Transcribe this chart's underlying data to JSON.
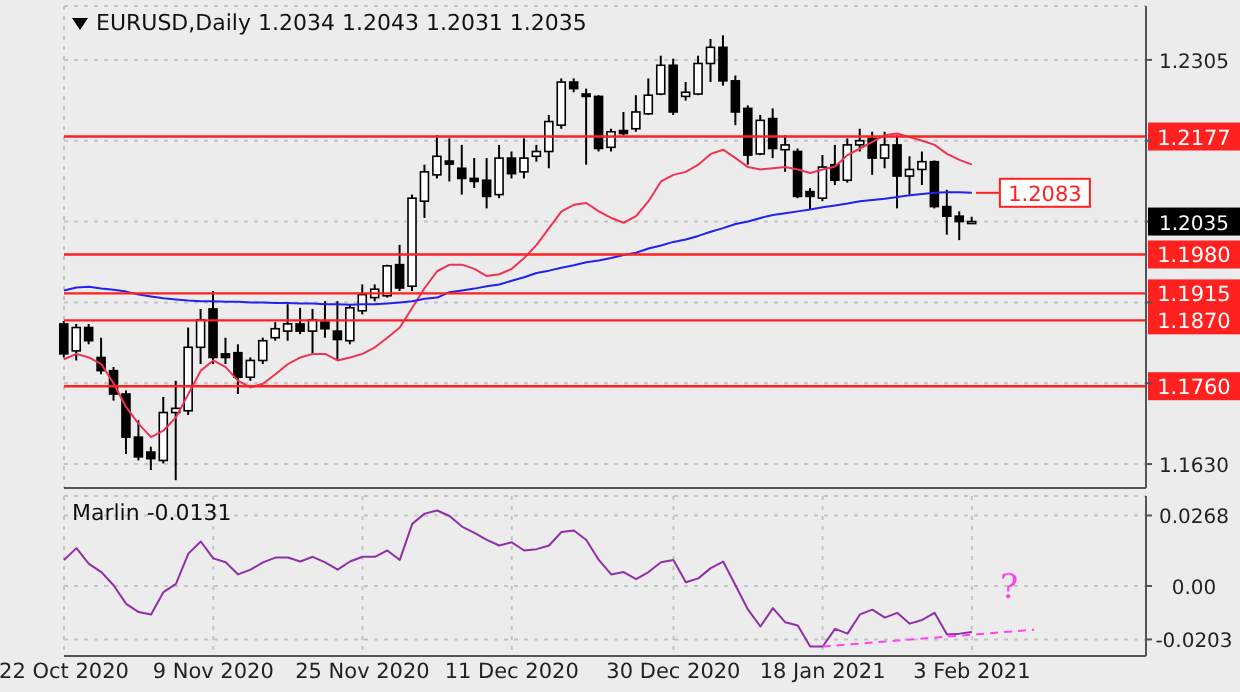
{
  "chart_data": [
    {
      "type": "candlestick",
      "title": "EURUSD,Daily 1.2034 1.2043 1.2031 1.2035",
      "categories": [
        "22 Oct 2020",
        null,
        null,
        null,
        null,
        null,
        null,
        null,
        null,
        null,
        null,
        null,
        "9 Nov 2020",
        null,
        null,
        null,
        null,
        null,
        null,
        null,
        null,
        null,
        null,
        null,
        "25 Nov 2020",
        null,
        null,
        null,
        null,
        null,
        null,
        null,
        null,
        null,
        null,
        null,
        "11 Dec 2020",
        null,
        null,
        null,
        null,
        null,
        null,
        null,
        null,
        null,
        null,
        null,
        null,
        "30 Dec 2020",
        null,
        null,
        null,
        null,
        null,
        null,
        null,
        null,
        null,
        null,
        null,
        "18 Jan 2021",
        null,
        null,
        null,
        null,
        null,
        null,
        null,
        null,
        null,
        null,
        null,
        "3 Feb 2021",
        null,
        null,
        null,
        null,
        null,
        null,
        null,
        null,
        null,
        null,
        null,
        null,
        null,
        null
      ],
      "ohlc": [
        [
          1.1864,
          1.1869,
          1.1808,
          1.1814
        ],
        [
          1.1819,
          1.1864,
          1.1803,
          1.1858
        ],
        [
          1.1858,
          1.1864,
          1.183,
          1.1836
        ],
        [
          1.1808,
          1.1841,
          1.178,
          1.1786
        ],
        [
          1.1786,
          1.1792,
          1.1736,
          1.1747
        ],
        [
          1.1747,
          1.1753,
          1.1647,
          1.1675
        ],
        [
          1.1675,
          1.1703,
          1.1636,
          1.1642
        ],
        [
          1.165,
          1.1659,
          1.162,
          1.1639
        ],
        [
          1.1636,
          1.1742,
          1.1631,
          1.1716
        ],
        [
          1.1716,
          1.1769,
          1.1603,
          1.1723
        ],
        [
          1.1719,
          1.1858,
          1.1712,
          1.1825
        ],
        [
          1.1825,
          1.1889,
          1.1797,
          1.1871
        ],
        [
          1.1889,
          1.1919,
          1.1797,
          1.1808
        ],
        [
          1.1814,
          1.1841,
          1.1797,
          1.1808
        ],
        [
          1.1816,
          1.183,
          1.1747,
          1.1775
        ],
        [
          1.1775,
          1.1808,
          1.1769,
          1.1803
        ],
        [
          1.1803,
          1.1841,
          1.1797,
          1.1836
        ],
        [
          1.1841,
          1.1867,
          1.1836,
          1.1856
        ],
        [
          1.1852,
          1.1897,
          1.1836,
          1.1864
        ],
        [
          1.1864,
          1.1891,
          1.1847,
          1.1852
        ],
        [
          1.1852,
          1.1889,
          1.1814,
          1.1871
        ],
        [
          1.1867,
          1.1902,
          1.1841,
          1.1856
        ],
        [
          1.1852,
          1.1902,
          1.1803,
          1.1838
        ],
        [
          1.1836,
          1.1897,
          1.183,
          1.1891
        ],
        [
          1.1886,
          1.193,
          1.188,
          1.1913
        ],
        [
          1.1908,
          1.193,
          1.1902,
          1.1922
        ],
        [
          1.1911,
          1.1963,
          1.1908,
          1.1961
        ],
        [
          1.1963,
          1.1996,
          1.1919,
          1.1924
        ],
        [
          1.1927,
          1.208,
          1.1919,
          1.2074
        ],
        [
          1.2069,
          1.213,
          1.2041,
          1.2118
        ],
        [
          1.2113,
          1.2179,
          1.2107,
          1.2144
        ],
        [
          1.2136,
          1.2174,
          1.2102,
          1.2131
        ],
        [
          1.2124,
          1.2163,
          1.208,
          1.2107
        ],
        [
          1.2107,
          1.2141,
          1.2091,
          1.2102
        ],
        [
          1.2104,
          1.2141,
          1.2057,
          1.2077
        ],
        [
          1.208,
          1.2163,
          1.2074,
          1.2141
        ],
        [
          1.2141,
          1.2152,
          1.2107,
          1.2115
        ],
        [
          1.2118,
          1.2174,
          1.2107,
          1.2141
        ],
        [
          1.2144,
          1.2163,
          1.2135,
          1.2152
        ],
        [
          1.2152,
          1.2213,
          1.2124,
          1.2202
        ],
        [
          1.2196,
          1.2274,
          1.219,
          1.2268
        ],
        [
          1.2268,
          1.2274,
          1.2251,
          1.2257
        ],
        [
          1.2248,
          1.2257,
          1.213,
          1.2244
        ],
        [
          1.2244,
          1.2246,
          1.2152,
          1.2157
        ],
        [
          1.2159,
          1.219,
          1.2152,
          1.2185
        ],
        [
          1.2187,
          1.2218,
          1.2179,
          1.2182
        ],
        [
          1.219,
          1.2246,
          1.2185,
          1.2218
        ],
        [
          1.2215,
          1.2274,
          1.2213,
          1.2246
        ],
        [
          1.2248,
          1.2312,
          1.2246,
          1.2296
        ],
        [
          1.2296,
          1.2307,
          1.2213,
          1.2218
        ],
        [
          1.2244,
          1.2268,
          1.2237,
          1.2251
        ],
        [
          1.2248,
          1.2312,
          1.2246,
          1.2299
        ],
        [
          1.2299,
          1.234,
          1.2268,
          1.2326
        ],
        [
          1.2326,
          1.2346,
          1.2262,
          1.227
        ],
        [
          1.227,
          1.2279,
          1.2196,
          1.2218
        ],
        [
          1.2224,
          1.2229,
          1.213,
          1.2146
        ],
        [
          1.2148,
          1.2213,
          1.2146,
          1.2204
        ],
        [
          1.2207,
          1.2224,
          1.2141,
          1.2157
        ],
        [
          1.2155,
          1.2179,
          1.2118,
          1.2163
        ],
        [
          1.2152,
          1.2157,
          1.2074,
          1.2077
        ],
        [
          1.2085,
          1.2091,
          1.2055,
          1.2077
        ],
        [
          1.2074,
          1.2146,
          1.2069,
          1.2126
        ],
        [
          1.213,
          1.2163,
          1.2096,
          1.2104
        ],
        [
          1.2104,
          1.2174,
          1.21,
          1.2163
        ],
        [
          1.2163,
          1.219,
          1.2152,
          1.217
        ],
        [
          1.2174,
          1.2185,
          1.2113,
          1.2141
        ],
        [
          1.2141,
          1.2185,
          1.2124,
          1.2163
        ],
        [
          1.2163,
          1.2179,
          1.2057,
          1.2111
        ],
        [
          1.2111,
          1.2144,
          1.208,
          1.2122
        ],
        [
          1.2122,
          1.2152,
          1.2096,
          1.2135
        ],
        [
          1.2135,
          1.2137,
          1.2057,
          1.206
        ],
        [
          1.206,
          1.2088,
          1.2013,
          1.2044
        ],
        [
          1.2044,
          1.2052,
          1.2004,
          1.2035
        ],
        [
          1.2034,
          1.2043,
          1.2031,
          1.2035
        ],
        null,
        null,
        null,
        null,
        null,
        null,
        null,
        null,
        null,
        null,
        null,
        null,
        null,
        null
      ],
      "series": [
        {
          "type": "line",
          "color": "#ee3355",
          "values": [
            1.1805,
            1.1814,
            1.1808,
            1.1797,
            1.1764,
            1.1725,
            1.1697,
            1.1675,
            1.1686,
            1.1708,
            1.1747,
            1.1786,
            1.1803,
            1.1792,
            1.1769,
            1.1758,
            1.1764,
            1.178,
            1.1797,
            1.1808,
            1.1814,
            1.1814,
            1.1803,
            1.1808,
            1.1814,
            1.1825,
            1.1841,
            1.1858,
            1.1891,
            1.1924,
            1.1952,
            1.1963,
            1.1963,
            1.1956,
            1.1944,
            1.1947,
            1.1956,
            1.1974,
            1.1996,
            1.2024,
            1.2052,
            1.2063,
            1.2066,
            1.2052,
            1.2041,
            1.2033,
            1.2044,
            1.2069,
            1.2102,
            1.2113,
            1.2118,
            1.213,
            1.2148,
            1.2155,
            1.2141,
            1.2126,
            1.2122,
            1.2124,
            1.2126,
            1.2122,
            1.2116,
            1.2122,
            1.2127,
            1.2146,
            1.2157,
            1.2168,
            1.2179,
            1.2182,
            1.2176,
            1.217,
            1.2163,
            1.2148,
            1.2138,
            1.213,
            null,
            null,
            null,
            null,
            null,
            null,
            null,
            null,
            null,
            null,
            null,
            null,
            null,
            null
          ]
        },
        {
          "type": "line",
          "color": "#2222ee",
          "values": [
            1.192,
            1.1925,
            1.1926,
            1.1923,
            1.1921,
            1.1918,
            1.1913,
            1.191,
            1.1907,
            1.1905,
            1.1903,
            1.1902,
            1.1902,
            1.1901,
            1.1901,
            1.19,
            1.19,
            1.1899,
            1.1899,
            1.1898,
            1.1898,
            1.1897,
            1.1897,
            1.1896,
            1.1897,
            1.1897,
            1.1898,
            1.19,
            1.1902,
            1.1906,
            1.1908,
            1.1917,
            1.192,
            1.1923,
            1.1927,
            1.193,
            1.1936,
            1.1942,
            1.1949,
            1.1953,
            1.1958,
            1.1962,
            1.1967,
            1.197,
            1.1974,
            1.1979,
            1.1983,
            1.199,
            1.1995,
            1.2001,
            1.2005,
            1.2011,
            1.2018,
            1.2024,
            1.2031,
            1.2035,
            1.2041,
            1.2046,
            1.2049,
            1.2052,
            1.2055,
            1.2059,
            1.2062,
            1.2065,
            1.2069,
            1.2071,
            1.2073,
            1.2076,
            1.2079,
            1.2081,
            1.2083,
            1.2084,
            1.2084,
            1.2083,
            null,
            null,
            null,
            null,
            null,
            null,
            null,
            null,
            null,
            null,
            null,
            null,
            null,
            null
          ]
        }
      ],
      "ylim": [
        1.159,
        1.2395
      ],
      "yticks": [
        1.2305,
        {
          "value": 1.217,
          "label": null
        },
        1.2035,
        {
          "value": 1.19,
          "label": null
        },
        {
          "value": 1.1765,
          "label": null
        },
        {
          "value": 1.163,
          "label": "1.1630"
        }
      ],
      "ref_lines": [
        {
          "axis": "y",
          "value": 1.2177,
          "label": "1.2177",
          "color": "#ff2020"
        },
        {
          "axis": "y",
          "value": 1.198,
          "label": "1.1980",
          "color": "#ff2020"
        },
        {
          "axis": "y",
          "value": 1.1915,
          "label": "1.1915",
          "color": "#ff2020"
        },
        {
          "axis": "y",
          "value": 1.187,
          "label": "1.1870",
          "color": "#ff2020"
        },
        {
          "axis": "y",
          "value": 1.176,
          "label": "1.1760",
          "color": "#ff2020"
        }
      ],
      "annotations": [
        {
          "text": "1.2083",
          "x": "3 Feb 2021",
          "y": 1.2083
        }
      ],
      "grid": true,
      "tick_labels": "y"
    },
    {
      "type": "line",
      "title": "Marlin -0.0131",
      "categories": [
        "22 Oct 2020",
        null,
        null,
        null,
        null,
        null,
        null,
        null,
        null,
        null,
        null,
        null,
        "9 Nov 2020",
        null,
        null,
        null,
        null,
        null,
        null,
        null,
        null,
        null,
        null,
        null,
        "25 Nov 2020",
        null,
        null,
        null,
        null,
        null,
        null,
        null,
        null,
        null,
        null,
        null,
        "11 Dec 2020",
        null,
        null,
        null,
        null,
        null,
        null,
        null,
        null,
        null,
        null,
        null,
        null,
        "30 Dec 2020",
        null,
        null,
        null,
        null,
        null,
        null,
        null,
        null,
        null,
        null,
        null,
        "18 Jan 2021",
        null,
        null,
        null,
        null,
        null,
        null,
        null,
        null,
        null,
        null,
        null,
        "3 Feb 2021",
        null,
        null,
        null,
        null,
        null,
        null,
        null,
        null,
        null,
        null,
        null,
        null,
        null,
        null
      ],
      "series": [
        {
          "color": "#9030a8",
          "values": [
            0.0099,
            0.0144,
            0.0084,
            0.0053,
            0.0002,
            -0.0068,
            -0.0099,
            -0.0108,
            -0.0023,
            0.0008,
            0.0123,
            0.0169,
            0.0105,
            0.009,
            0.0044,
            0.0062,
            0.009,
            0.0108,
            0.0108,
            0.0093,
            0.0111,
            0.009,
            0.0062,
            0.0093,
            0.0111,
            0.0111,
            0.0135,
            0.0099,
            0.0236,
            0.0275,
            0.0287,
            0.0266,
            0.0226,
            0.0202,
            0.0175,
            0.0154,
            0.0166,
            0.0135,
            0.014,
            0.0154,
            0.0205,
            0.0211,
            0.0175,
            0.0099,
            0.0044,
            0.0053,
            0.0026,
            0.0053,
            0.009,
            0.0099,
            0.0014,
            0.0029,
            0.0068,
            0.0093,
            0.0002,
            -0.009,
            -0.0154,
            -0.0084,
            -0.0138,
            -0.015,
            -0.023,
            -0.023,
            -0.0163,
            -0.0181,
            -0.0108,
            -0.009,
            -0.012,
            -0.0102,
            -0.0143,
            -0.0129,
            -0.0102,
            -0.0184,
            -0.0181,
            -0.0175,
            null,
            null,
            null,
            null,
            null,
            null,
            null,
            null,
            null,
            null,
            null,
            null,
            null,
            null
          ]
        },
        {
          "color": "#ff44ee",
          "line_style": "dashed",
          "values": [
            null,
            null,
            null,
            null,
            null,
            null,
            null,
            null,
            null,
            null,
            null,
            null,
            null,
            null,
            null,
            null,
            null,
            null,
            null,
            null,
            null,
            null,
            null,
            null,
            null,
            null,
            null,
            null,
            null,
            null,
            null,
            null,
            null,
            null,
            null,
            null,
            null,
            null,
            null,
            null,
            null,
            null,
            null,
            null,
            null,
            null,
            null,
            null,
            null,
            null,
            null,
            null,
            null,
            null,
            null,
            null,
            null,
            null,
            null,
            null,
            null,
            -0.023,
            null,
            null,
            null,
            null,
            null,
            null,
            null,
            null,
            null,
            null,
            null,
            null,
            null,
            null,
            null,
            null,
            -0.0166,
            null,
            null,
            null,
            null,
            null,
            null,
            null,
            null,
            null
          ]
        }
      ],
      "ylim": [
        -0.0266,
        0.0342
      ],
      "yticks": [
        0.0268,
        {
          "value": 0,
          "label": "0.00"
        },
        -0.0203
      ],
      "annotations": [
        {
          "text": "?",
          "y": -0.0166
        }
      ],
      "grid": true
    }
  ]
}
